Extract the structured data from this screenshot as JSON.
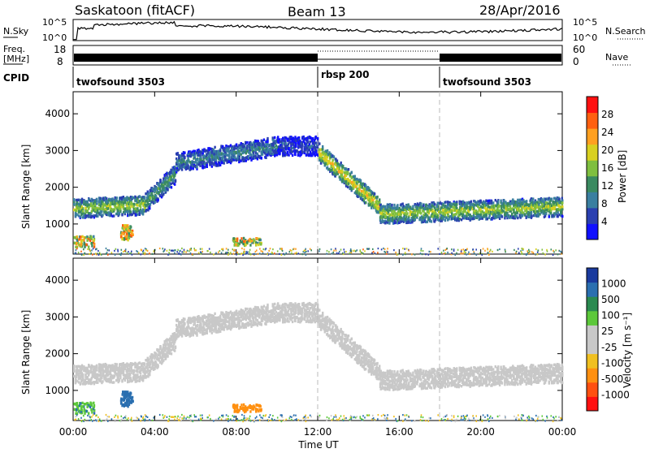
{
  "header": {
    "radar": "Saskatoon (fitACF)",
    "beam": "Beam 13",
    "date": "28/Apr/2016"
  },
  "noise_panel": {
    "left_label": "N.Sky",
    "right_label": "N.Search",
    "left_ticks": [
      "10^5",
      "10^0"
    ],
    "right_ticks": [
      "10^5",
      "10^0"
    ]
  },
  "freq_panel": {
    "left_label_line1": "Freq.",
    "left_label_line2": "[MHz]",
    "right_label": "Nave",
    "left_ticks": [
      "18",
      "8"
    ],
    "right_ticks": [
      "60",
      "0"
    ]
  },
  "cpid_panel": {
    "label": "CPID",
    "segments": [
      {
        "name": "twofsound 3503",
        "start": 0,
        "end": 12
      },
      {
        "name": "rbsp 200",
        "start": 12,
        "end": 18
      },
      {
        "name": "twofsound 3503",
        "start": 18,
        "end": 24
      }
    ]
  },
  "x_axis": {
    "label": "Time UT",
    "ticks": [
      "00:00",
      "04:00",
      "08:00",
      "12:00",
      "16:00",
      "20:00",
      "00:00"
    ]
  },
  "power_panel": {
    "ylabel": "Slant Range [km]",
    "yticks": [
      "1000",
      "2000",
      "3000",
      "4000"
    ],
    "colorbar_label": "Power [dB]",
    "colorbar_ticks": [
      "4",
      "8",
      "12",
      "16",
      "20",
      "24",
      "28"
    ],
    "colorbar_colors": [
      "#1010ff",
      "#2a3fb0",
      "#3a7fa0",
      "#3a8a60",
      "#7fbf3f",
      "#d8d020",
      "#ffa020",
      "#ff6010",
      "#ff1010"
    ]
  },
  "velocity_panel": {
    "ylabel": "Slant Range [km]",
    "yticks": [
      "1000",
      "2000",
      "3000",
      "4000"
    ],
    "colorbar_label": "Velocity [m s⁻¹]",
    "colorbar_ticks": [
      "1000",
      "500",
      "100",
      "25",
      "-25",
      "-100",
      "-500",
      "-1000"
    ],
    "colorbar_colors": [
      "#1a3a9e",
      "#2a6fb0",
      "#2a8a50",
      "#5cc83a",
      "#c8c8c8",
      "#c8c8c8",
      "#f0c020",
      "#ff9010",
      "#ff5010",
      "#ff1010"
    ]
  },
  "chart_data": {
    "type": "heatmap",
    "title": "Saskatoon (fitACF)",
    "x_range_hours_ut": [
      0,
      24
    ],
    "x_ticks_hours_ut": [
      0,
      4,
      8,
      12,
      16,
      20,
      24
    ],
    "y_range_km": [
      180,
      4600
    ],
    "y_ticks_km": [
      1000,
      2000,
      3000,
      4000
    ],
    "mode_change_times_hours_ut": [
      12,
      18
    ],
    "power_scale_db": [
      0,
      32
    ],
    "velocity_scale_ms": [
      -1000,
      1000
    ],
    "backscatter_bands": [
      {
        "t_start": 0.0,
        "t_end": 3.5,
        "center_range_km": [
          1450,
          1550
        ],
        "power_db": 18
      },
      {
        "t_start": 3.5,
        "t_end": 5.0,
        "center_range_km": [
          1600,
          2400
        ],
        "power_db": 14
      },
      {
        "t_start": 5.0,
        "t_end": 10.0,
        "center_range_km": [
          2700,
          3150
        ],
        "power_db": 10
      },
      {
        "t_start": 10.0,
        "t_end": 12.0,
        "center_range_km": [
          3150,
          3150
        ],
        "power_db": 6
      },
      {
        "t_start": 12.0,
        "t_end": 15.0,
        "center_range_km": [
          3000,
          1500
        ],
        "power_db": 22
      },
      {
        "t_start": 15.0,
        "t_end": 24.0,
        "center_range_km": [
          1300,
          1500
        ],
        "power_db": 18
      }
    ],
    "ground_scatter_clusters": [
      {
        "t_start": 0.0,
        "t_end": 1.0,
        "range_km": [
          400,
          700
        ],
        "velocity_ms": 80
      },
      {
        "t_start": 2.3,
        "t_end": 2.9,
        "range_km": [
          600,
          1000
        ],
        "velocity_ms": 300
      },
      {
        "t_start": 7.8,
        "t_end": 9.2,
        "range_km": [
          450,
          650
        ],
        "velocity_ms": -200
      }
    ],
    "noise_sky_range": [
      1,
      100000
    ],
    "frequency_mhz_mean": 11,
    "nave_mean": 30
  }
}
